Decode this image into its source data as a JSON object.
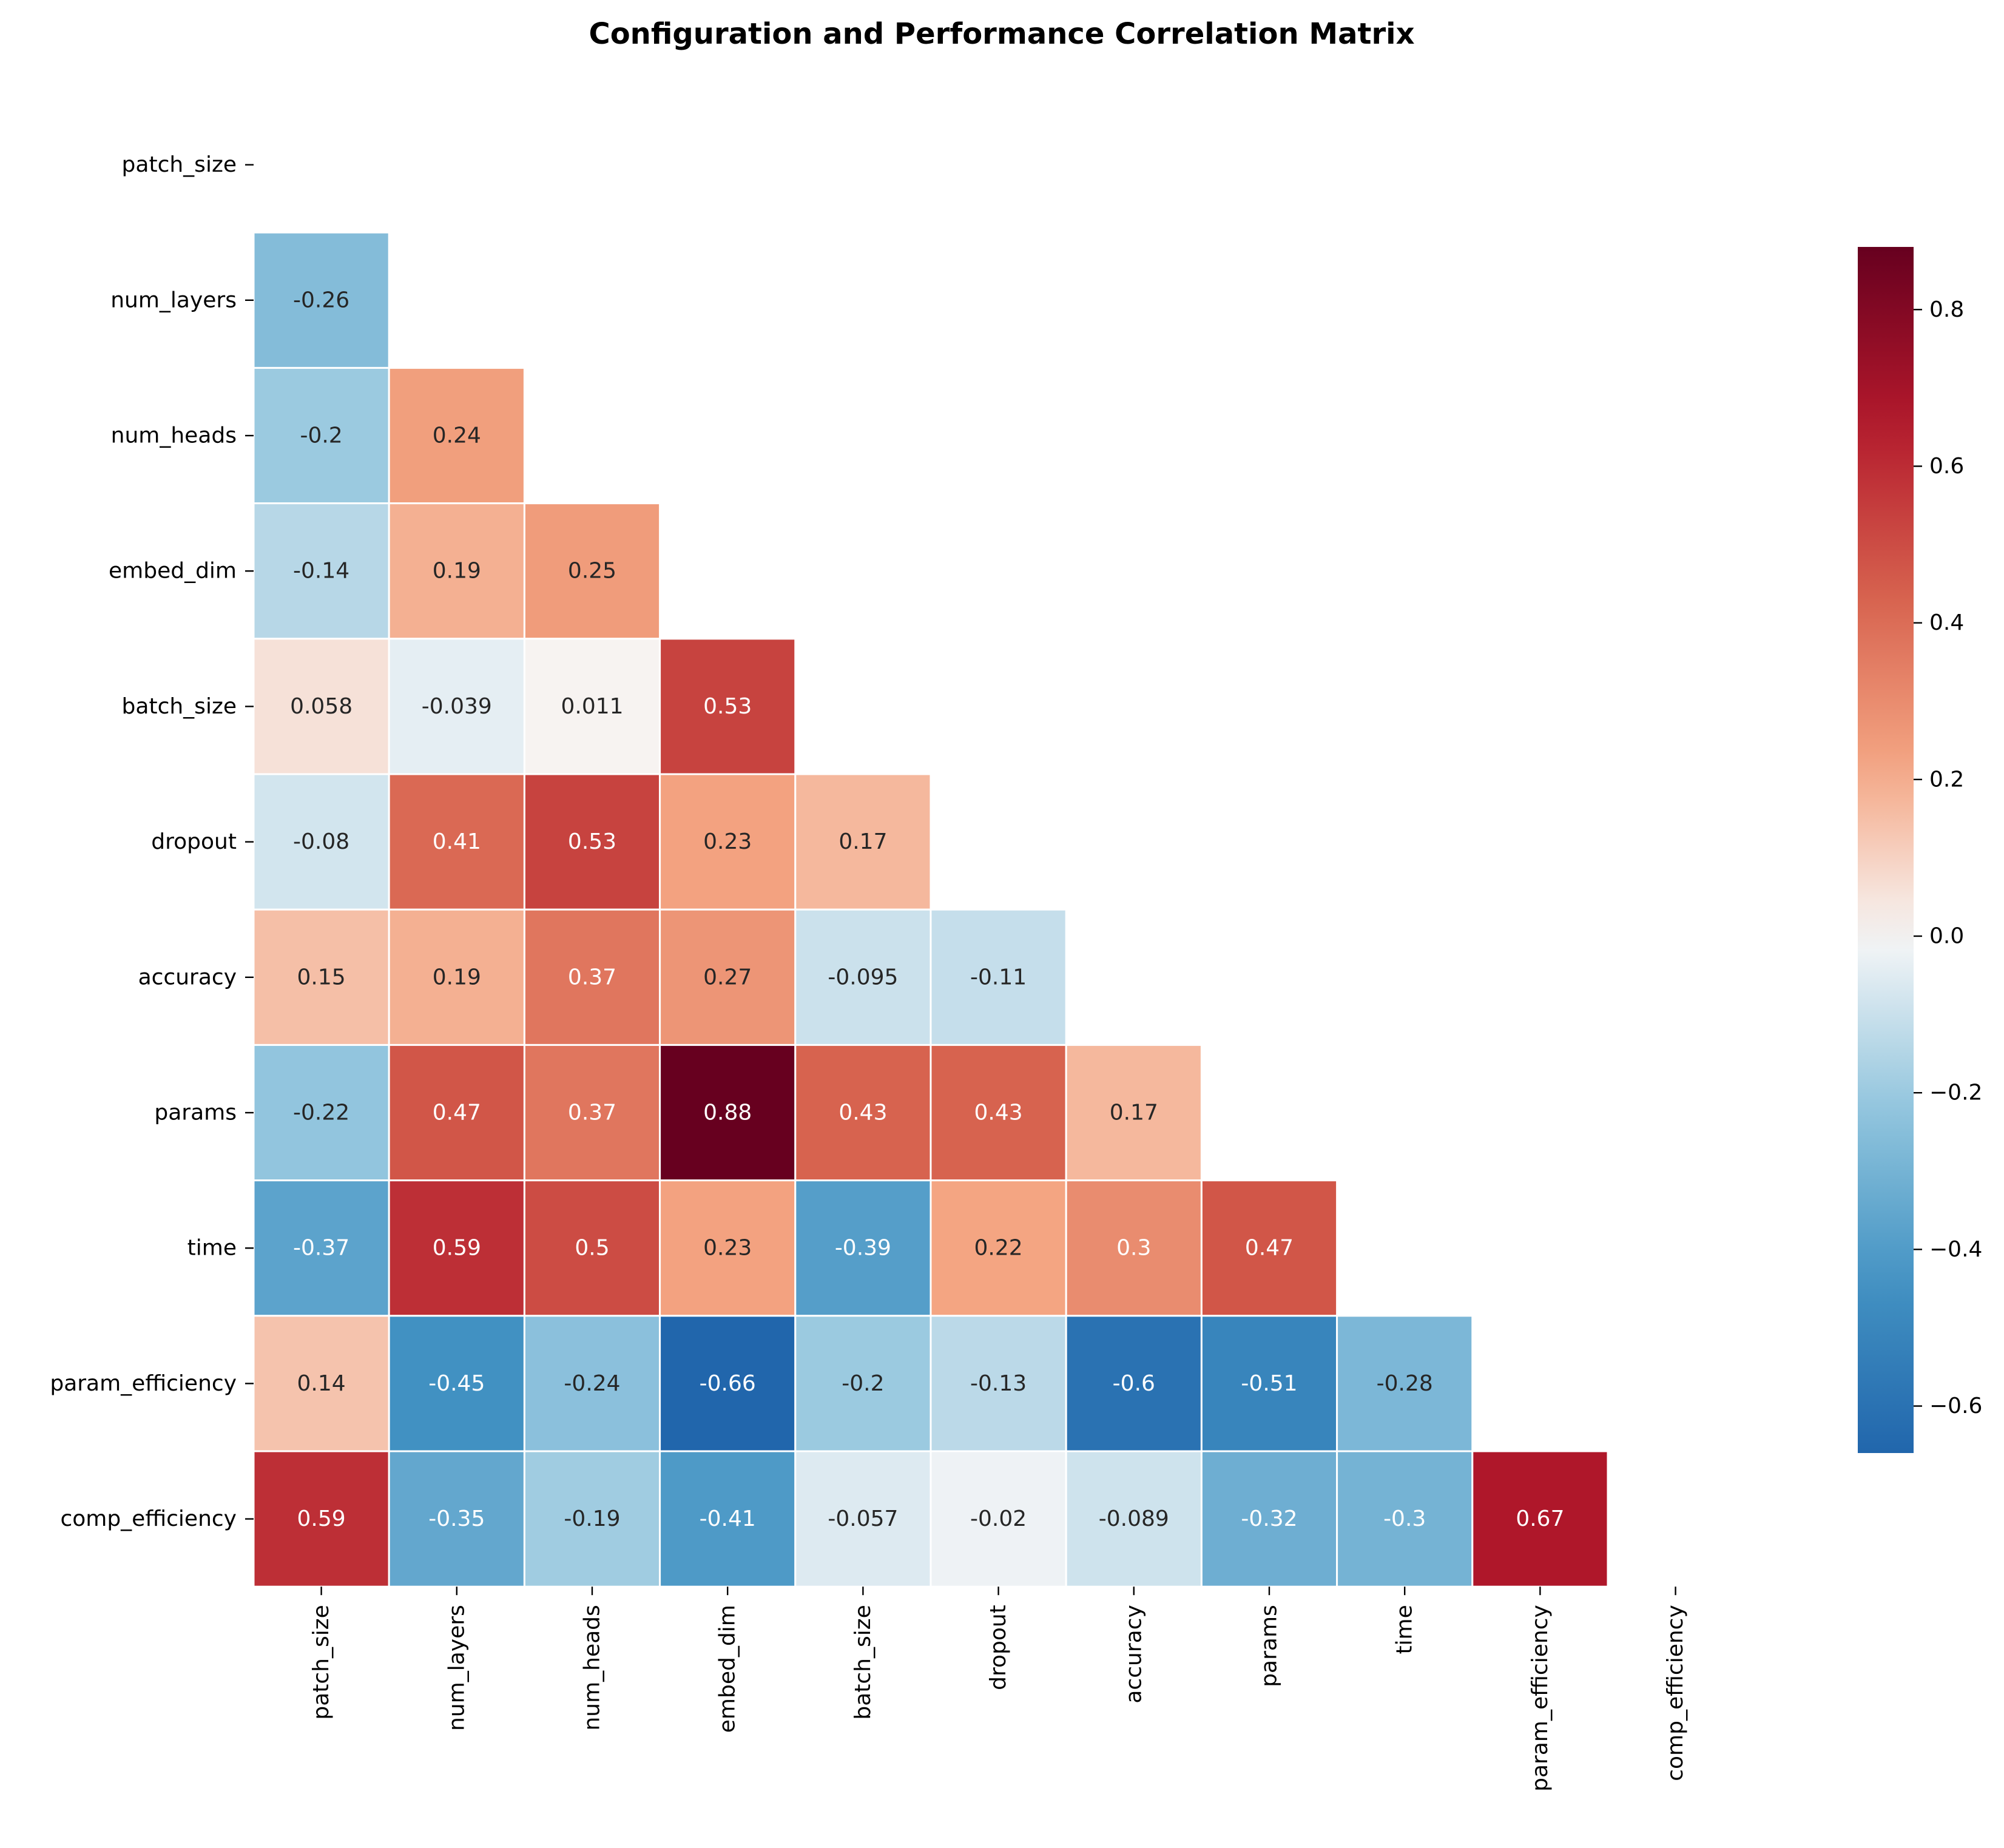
{
  "chart_data": {
    "type": "heatmap",
    "title": "Configuration and Performance Correlation Matrix",
    "xlabel": "",
    "ylabel": "",
    "labels": [
      "patch_size",
      "num_layers",
      "num_heads",
      "embed_dim",
      "batch_size",
      "dropout",
      "accuracy",
      "params",
      "time",
      "param_efficiency",
      "comp_efficiency"
    ],
    "mask": "upper triangle including diagonal",
    "matrix": [
      [
        null,
        null,
        null,
        null,
        null,
        null,
        null,
        null,
        null,
        null,
        null
      ],
      [
        -0.26,
        null,
        null,
        null,
        null,
        null,
        null,
        null,
        null,
        null,
        null
      ],
      [
        -0.2,
        0.24,
        null,
        null,
        null,
        null,
        null,
        null,
        null,
        null,
        null
      ],
      [
        -0.14,
        0.19,
        0.25,
        null,
        null,
        null,
        null,
        null,
        null,
        null,
        null
      ],
      [
        0.058,
        -0.039,
        0.011,
        0.53,
        null,
        null,
        null,
        null,
        null,
        null,
        null
      ],
      [
        -0.08,
        0.41,
        0.53,
        0.23,
        0.17,
        null,
        null,
        null,
        null,
        null,
        null
      ],
      [
        0.15,
        0.19,
        0.37,
        0.27,
        -0.095,
        -0.11,
        null,
        null,
        null,
        null,
        null
      ],
      [
        -0.22,
        0.47,
        0.37,
        0.88,
        0.43,
        0.43,
        0.17,
        null,
        null,
        null,
        null
      ],
      [
        -0.37,
        0.59,
        0.5,
        0.23,
        -0.39,
        0.22,
        0.3,
        0.47,
        null,
        null,
        null
      ],
      [
        0.14,
        -0.45,
        -0.24,
        -0.66,
        -0.2,
        -0.13,
        -0.6,
        -0.51,
        -0.28,
        null,
        null
      ],
      [
        0.59,
        -0.35,
        -0.19,
        -0.41,
        -0.057,
        -0.02,
        -0.089,
        -0.32,
        -0.3,
        0.67,
        null
      ]
    ],
    "cell_labels": [
      [
        null,
        null,
        null,
        null,
        null,
        null,
        null,
        null,
        null,
        null,
        null
      ],
      [
        "-0.26",
        null,
        null,
        null,
        null,
        null,
        null,
        null,
        null,
        null,
        null
      ],
      [
        "-0.2",
        "0.24",
        null,
        null,
        null,
        null,
        null,
        null,
        null,
        null,
        null
      ],
      [
        "-0.14",
        "0.19",
        "0.25",
        null,
        null,
        null,
        null,
        null,
        null,
        null,
        null
      ],
      [
        "0.058",
        "-0.039",
        "0.011",
        "0.53",
        null,
        null,
        null,
        null,
        null,
        null,
        null
      ],
      [
        "-0.08",
        "0.41",
        "0.53",
        "0.23",
        "0.17",
        null,
        null,
        null,
        null,
        null,
        null
      ],
      [
        "0.15",
        "0.19",
        "0.37",
        "0.27",
        "-0.095",
        "-0.11",
        null,
        null,
        null,
        null,
        null
      ],
      [
        "-0.22",
        "0.47",
        "0.37",
        "0.88",
        "0.43",
        "0.43",
        "0.17",
        null,
        null,
        null,
        null
      ],
      [
        "-0.37",
        "0.59",
        "0.5",
        "0.23",
        "-0.39",
        "0.22",
        "0.3",
        "0.47",
        null,
        null,
        null
      ],
      [
        "0.14",
        "-0.45",
        "-0.24",
        "-0.66",
        "-0.2",
        "-0.13",
        "-0.6",
        "-0.51",
        "-0.28",
        null,
        null
      ],
      [
        "0.59",
        "-0.35",
        "-0.19",
        "-0.41",
        "-0.057",
        "-0.02",
        "-0.089",
        "-0.32",
        "-0.3",
        "0.67",
        null
      ]
    ],
    "colormap": "RdBu_r",
    "vmin": -0.66,
    "vmax": 0.88,
    "colorbar_ticks": [
      0.8,
      0.6,
      0.4,
      0.2,
      0.0,
      -0.2,
      -0.4,
      -0.6
    ],
    "colorbar_tick_labels": [
      "0.8",
      "0.6",
      "0.4",
      "0.2",
      "0.0",
      "−0.2",
      "−0.4",
      "−0.6"
    ],
    "colorbar_position": "right",
    "cell_border_color": "#ffffff",
    "grid": false
  }
}
